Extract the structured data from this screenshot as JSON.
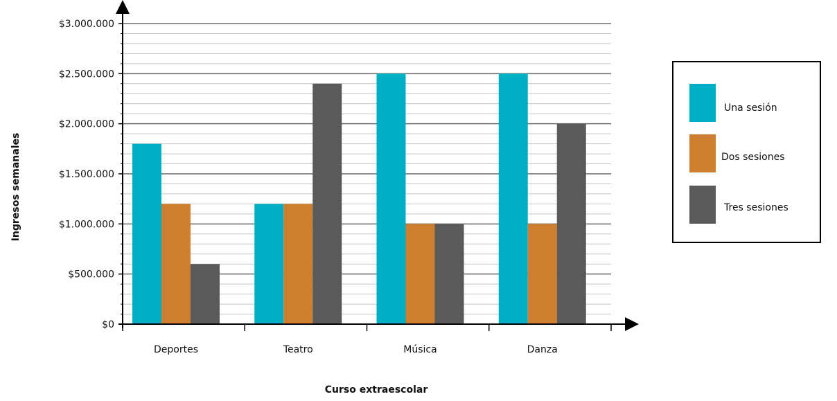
{
  "colors": {
    "una": "#00afc4",
    "dos": "#cd7e2e",
    "tres": "#5a5a5a",
    "major_grid": "#6b6b6b",
    "minor_grid": "#c4c4c4",
    "axis": "#000000",
    "legend_border": "#000000"
  },
  "chart_data": {
    "type": "bar",
    "categories": [
      "Deportes",
      "Teatro",
      "Música",
      "Danza"
    ],
    "series": [
      {
        "name": "Una sesión",
        "color_key": "una",
        "values": [
          1800000,
          1200000,
          2500000,
          2500000
        ]
      },
      {
        "name": "Dos sesiones",
        "color_key": "dos",
        "values": [
          1200000,
          1200000,
          1000000,
          1000000
        ]
      },
      {
        "name": "Tres sesiones",
        "color_key": "tres",
        "values": [
          600000,
          2400000,
          1000000,
          2000000
        ]
      }
    ],
    "title": "",
    "xlabel": "Curso extraescolar",
    "ylabel": "Ingresos semanales",
    "ylim": [
      0,
      3000000
    ],
    "yticks": [
      0,
      500000,
      1000000,
      1500000,
      2000000,
      2500000,
      3000000
    ],
    "ytick_labels": [
      "$0",
      "$500.000",
      "$1.000.000",
      "$1.500.000",
      "$2.000.000",
      "$2.500.000",
      "$3.000.000"
    ],
    "minor_step": 100000,
    "grid": true,
    "legend_position": "right"
  }
}
